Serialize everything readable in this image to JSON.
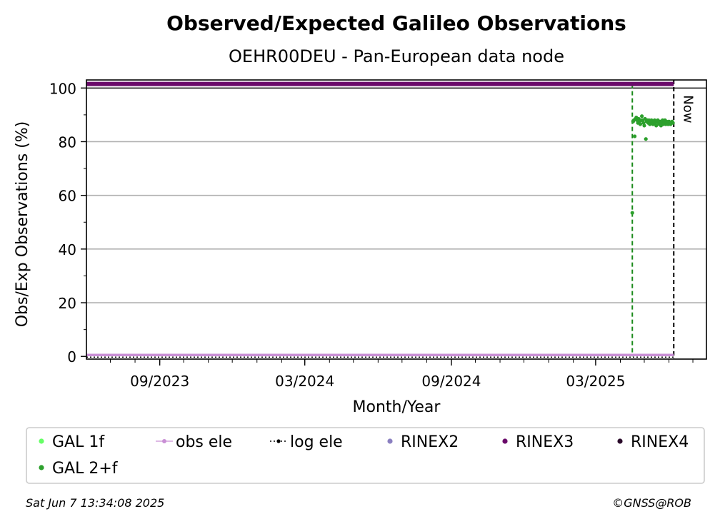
{
  "chart_data": {
    "type": "scatter",
    "title": "Observed/Expected Galileo Observations",
    "subtitle": "OEHR00DEU - Pan-European data node",
    "xlabel": "Month/Year",
    "ylabel": "Obs/Exp Observations (%)",
    "x_range": [
      "2023-06-01",
      "2025-07-18"
    ],
    "ylim": [
      -1,
      103
    ],
    "yticks": [
      0,
      20,
      40,
      60,
      80,
      100
    ],
    "xticks": [
      {
        "date": "2023-09-01",
        "label": "09/2023"
      },
      {
        "date": "2024-03-01",
        "label": "03/2024"
      },
      {
        "date": "2024-09-01",
        "label": "09/2024"
      },
      {
        "date": "2025-03-01",
        "label": "03/2025"
      }
    ],
    "grid": "horizontal",
    "now_label": "Now",
    "now_date": "2025-06-07",
    "start_marker_date": "2025-04-16",
    "series": [
      {
        "name": "GAL 1f",
        "color": "#66ff66",
        "points": []
      },
      {
        "name": "obs ele",
        "color": "#c98fd5",
        "constant_value": 0,
        "from": "2023-06-01",
        "to": "2025-06-07"
      },
      {
        "name": "log ele",
        "color": "#000000",
        "constant_value": 0,
        "from": "2023-06-01",
        "to": "2025-06-07"
      },
      {
        "name": "RINEX2",
        "color": "#8a7fc0",
        "points": []
      },
      {
        "name": "RINEX3",
        "color": "#6a0a6a",
        "constant_value": 101.5,
        "from": "2023-06-01",
        "to": "2025-06-07"
      },
      {
        "name": "RINEX4",
        "color": "#2a0a2a",
        "points": []
      },
      {
        "name": "GAL 2+f",
        "color": "#2ca02c",
        "points": [
          [
            "2025-04-16",
            53.5
          ],
          [
            "2025-04-17",
            87.5
          ],
          [
            "2025-04-18",
            88.0
          ],
          [
            "2025-04-19",
            82.0
          ],
          [
            "2025-04-20",
            88.5
          ],
          [
            "2025-04-21",
            89.0
          ],
          [
            "2025-04-22",
            88.0
          ],
          [
            "2025-04-23",
            87.0
          ],
          [
            "2025-04-24",
            88.5
          ],
          [
            "2025-04-25",
            87.5
          ],
          [
            "2025-04-26",
            86.5
          ],
          [
            "2025-04-27",
            88.0
          ],
          [
            "2025-04-28",
            89.5
          ],
          [
            "2025-04-29",
            88.0
          ],
          [
            "2025-04-30",
            87.0
          ],
          [
            "2025-05-01",
            86.0
          ],
          [
            "2025-05-02",
            88.5
          ],
          [
            "2025-05-03",
            81.0
          ],
          [
            "2025-05-04",
            87.5
          ],
          [
            "2025-05-05",
            88.0
          ],
          [
            "2025-05-06",
            87.0
          ],
          [
            "2025-05-07",
            88.0
          ],
          [
            "2025-05-08",
            86.5
          ],
          [
            "2025-05-09",
            87.5
          ],
          [
            "2025-05-10",
            88.0
          ],
          [
            "2025-05-11",
            87.0
          ],
          [
            "2025-05-12",
            86.5
          ],
          [
            "2025-05-13",
            87.5
          ],
          [
            "2025-05-14",
            88.0
          ],
          [
            "2025-05-15",
            87.0
          ],
          [
            "2025-05-16",
            86.0
          ],
          [
            "2025-05-17",
            87.5
          ],
          [
            "2025-05-18",
            88.0
          ],
          [
            "2025-05-19",
            87.0
          ],
          [
            "2025-05-20",
            86.5
          ],
          [
            "2025-05-21",
            87.5
          ],
          [
            "2025-05-22",
            86.0
          ],
          [
            "2025-05-23",
            87.0
          ],
          [
            "2025-05-24",
            88.0
          ],
          [
            "2025-05-25",
            86.5
          ],
          [
            "2025-05-26",
            87.0
          ],
          [
            "2025-05-27",
            88.0
          ],
          [
            "2025-05-28",
            86.5
          ],
          [
            "2025-05-29",
            87.5
          ],
          [
            "2025-05-30",
            87.0
          ],
          [
            "2025-05-31",
            86.5
          ],
          [
            "2025-06-01",
            87.5
          ],
          [
            "2025-06-02",
            87.0
          ],
          [
            "2025-06-03",
            86.5
          ],
          [
            "2025-06-04",
            87.0
          ],
          [
            "2025-06-05",
            87.5
          ],
          [
            "2025-06-06",
            87.0
          ]
        ]
      }
    ],
    "legend": [
      "GAL 1f",
      "obs ele",
      "log ele",
      "RINEX2",
      "RINEX3",
      "RINEX4",
      "GAL 2+f"
    ],
    "legend_position": "bottom"
  },
  "footer": {
    "timestamp": "Sat Jun  7 13:34:08 2025",
    "credit": "©GNSS@ROB"
  }
}
